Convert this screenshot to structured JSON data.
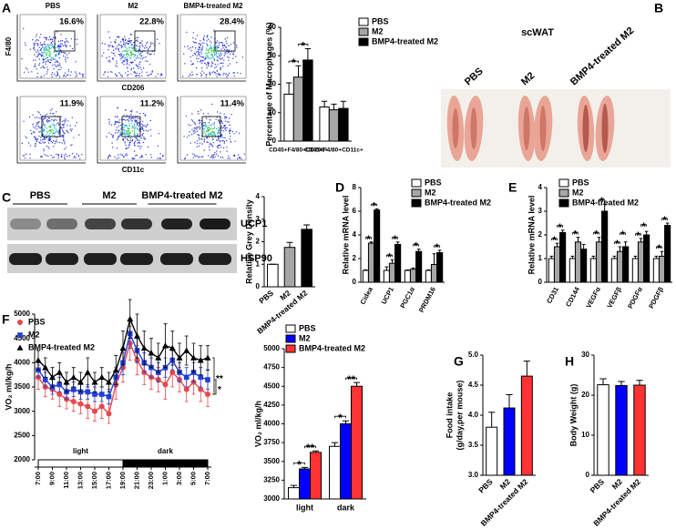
{
  "panels": [
    "A",
    "B",
    "C",
    "D",
    "E",
    "F",
    "G",
    "H"
  ],
  "flow_cytometry": {
    "columns": [
      "PBS",
      "M2",
      "BMP4-treated M2"
    ],
    "rows": [
      {
        "y_label": "F4/80",
        "x_label": "CD206",
        "gates": [
          "16.6%",
          "22.8%",
          "28.4%"
        ]
      },
      {
        "x_label": "CD11c",
        "gates": [
          "11.9%",
          "11.2%",
          "11.4%"
        ]
      }
    ]
  },
  "photo": {
    "title": "scWAT",
    "labels": [
      "PBS",
      "M2",
      "BMP4-treated M2"
    ]
  },
  "western_blot": {
    "columns": [
      "PBS",
      "M2",
      "BMP4-treated M2"
    ],
    "rows": [
      "UCP1",
      "HSP90"
    ]
  },
  "chart_data": [
    {
      "type": "bar",
      "ylabel": "Percentage of Macrophages (%)",
      "categories": [
        "CD45+F4/80+CD206+",
        "CD45+F4/80+CD11c+"
      ],
      "series": [
        {
          "name": "PBS",
          "color": "#ffffff",
          "values": [
            16.5,
            12
          ],
          "errors": [
            4,
            2
          ]
        },
        {
          "name": "M2",
          "color": "#a6a6a6",
          "values": [
            22.5,
            11
          ],
          "errors": [
            4,
            2
          ]
        },
        {
          "name": "BMP4-treated M2",
          "color": "#000000",
          "values": [
            28.5,
            11.5
          ],
          "errors": [
            4,
            2.5
          ]
        }
      ],
      "ylim": [
        0,
        40
      ],
      "yticks": [
        0,
        10,
        20,
        30,
        40
      ],
      "significance": [
        {
          "text": "*",
          "category": 0,
          "from": 0,
          "to": 1
        },
        {
          "text": "*",
          "category": 0,
          "from": 1,
          "to": 2
        }
      ]
    },
    {
      "type": "bar",
      "ylabel": "Relative Grey Density",
      "categories": [
        "PBS",
        "M2",
        "BMP4-treated M2"
      ],
      "values": [
        1,
        1.75,
        2.55
      ],
      "errors": [
        0,
        0.22,
        0.2
      ],
      "colors": [
        "#ffffff",
        "#a6a6a6",
        "#000000"
      ],
      "ylim": [
        0,
        4
      ],
      "yticks": [
        0,
        1,
        2,
        3,
        4
      ]
    },
    {
      "type": "bar",
      "ylabel": "Relative mRNA level",
      "categories": [
        "Cidea",
        "UCP1",
        "PGC1α",
        "PRDM16"
      ],
      "series": [
        {
          "name": "PBS",
          "color": "#ffffff",
          "values": [
            1,
            1,
            1,
            1
          ],
          "errors": [
            0.05,
            0.3,
            0.05,
            0.05
          ]
        },
        {
          "name": "M2",
          "color": "#a6a6a6",
          "values": [
            3.3,
            1.6,
            1.1,
            1.5
          ],
          "errors": [
            0.1,
            0.3,
            0.1,
            0.9
          ]
        },
        {
          "name": "BMP4-treated M2",
          "color": "#000000",
          "values": [
            6.1,
            3.2,
            2.6,
            2.5
          ],
          "errors": [
            0.1,
            0.2,
            0.2,
            0.2
          ]
        }
      ],
      "ylim": [
        0,
        8
      ],
      "yticks": [
        0,
        2,
        4,
        6,
        8
      ],
      "significance": [
        {
          "text": "*",
          "category": 0,
          "from": 0,
          "to": 1
        },
        {
          "text": "*",
          "category": 0,
          "from": 1,
          "to": 2
        },
        {
          "text": "*",
          "category": 1,
          "from": 0,
          "to": 1
        },
        {
          "text": "*",
          "category": 1,
          "from": 1,
          "to": 2
        },
        {
          "text": "*",
          "category": 2,
          "from": 1,
          "to": 2
        },
        {
          "text": "*",
          "category": 3,
          "from": 1,
          "to": 2
        }
      ]
    },
    {
      "type": "bar",
      "ylabel": "Relative mRNA level",
      "categories": [
        "CD31",
        "CD144",
        "VEGFα",
        "VEGFβ",
        "PDGFα",
        "PDGFβ"
      ],
      "series": [
        {
          "name": "PBS",
          "color": "#ffffff",
          "values": [
            1,
            1,
            1,
            1,
            1,
            1
          ],
          "errors": [
            0.1,
            0.1,
            0.1,
            0.1,
            0.1,
            0.1
          ]
        },
        {
          "name": "M2",
          "color": "#a6a6a6",
          "values": [
            1.5,
            1.7,
            1.7,
            1.3,
            1.7,
            1.1
          ],
          "errors": [
            0.15,
            0.2,
            0.2,
            0.2,
            0.15,
            0.2
          ]
        },
        {
          "name": "BMP4-treated M2",
          "color": "#000000",
          "values": [
            2.1,
            1.4,
            3.0,
            1.5,
            2.0,
            2.4
          ],
          "errors": [
            0.1,
            0.2,
            0.3,
            0.2,
            0.15,
            0.1
          ]
        }
      ],
      "ylim": [
        0,
        4
      ],
      "yticks": [
        0,
        1,
        2,
        3,
        4
      ],
      "significance": [
        {
          "text": "*",
          "category": 0,
          "from": 0,
          "to": 1
        },
        {
          "text": "*",
          "category": 0,
          "from": 1,
          "to": 2
        },
        {
          "text": "*",
          "category": 1,
          "from": 0,
          "to": 1
        },
        {
          "text": "*",
          "category": 2,
          "from": 0,
          "to": 1
        },
        {
          "text": "*",
          "category": 2,
          "from": 1,
          "to": 2
        },
        {
          "text": "*",
          "category": 3,
          "from": 0,
          "to": 1
        },
        {
          "text": "*",
          "category": 3,
          "from": 1,
          "to": 2
        },
        {
          "text": "*",
          "category": 4,
          "from": 0,
          "to": 1
        },
        {
          "text": "*",
          "category": 4,
          "from": 1,
          "to": 2
        },
        {
          "text": "*",
          "category": 5,
          "from": 0,
          "to": 1
        },
        {
          "text": "*",
          "category": 5,
          "from": 1,
          "to": 2
        }
      ]
    },
    {
      "type": "line",
      "ylabel": "VO₂ ml/kg/h",
      "categories": [
        "7:00",
        null,
        "9:00",
        null,
        "11:00",
        null,
        "13:00",
        null,
        "15:00",
        null,
        "17:00",
        null,
        "19:00",
        null,
        "21:00",
        null,
        "23:00",
        null,
        "1:00",
        null,
        "3:00",
        null,
        "5:00",
        null,
        "7:00"
      ],
      "series": [
        {
          "name": "PBS",
          "color": "#e8474c",
          "marker": "circle",
          "values": [
            3700,
            3500,
            3450,
            3350,
            3250,
            3200,
            3150,
            3100,
            3000,
            3100,
            2950,
            3550,
            3900,
            4400,
            4050,
            3800,
            3700,
            3650,
            3550,
            3800,
            3650,
            3450,
            3600,
            3450,
            3350
          ],
          "errors": [
            250,
            200,
            200,
            250,
            200,
            200,
            200,
            250,
            200,
            250,
            200,
            300,
            300,
            350,
            300,
            250,
            250,
            250,
            300,
            300,
            250,
            250,
            250,
            250,
            250
          ]
        },
        {
          "name": "M2",
          "color": "#1f3fd6",
          "marker": "square",
          "values": [
            3850,
            3650,
            3500,
            3550,
            3400,
            3450,
            3400,
            3400,
            3350,
            3350,
            3300,
            3700,
            4000,
            4600,
            4250,
            4000,
            3900,
            3800,
            3900,
            4050,
            3800,
            3700,
            3800,
            3700,
            3650
          ],
          "errors": [
            150,
            150,
            150,
            150,
            150,
            150,
            150,
            150,
            150,
            150,
            150,
            200,
            250,
            300,
            250,
            200,
            200,
            200,
            200,
            200,
            200,
            200,
            200,
            200,
            200
          ]
        },
        {
          "name": "BMP4-treated M2",
          "color": "#000000",
          "marker": "triangle",
          "values": [
            4050,
            3900,
            3700,
            3800,
            3600,
            3700,
            3600,
            3800,
            3600,
            3700,
            3600,
            3850,
            4300,
            4900,
            4550,
            4300,
            4200,
            4100,
            4350,
            4300,
            4100,
            4250,
            4100,
            4050,
            4100
          ],
          "errors": [
            200,
            200,
            200,
            200,
            200,
            200,
            200,
            300,
            200,
            200,
            200,
            300,
            350,
            400,
            450,
            350,
            300,
            300,
            450,
            350,
            300,
            300,
            300,
            300,
            250
          ]
        }
      ],
      "ylim": [
        2000,
        5000
      ],
      "yticks": [
        2000,
        2500,
        3000,
        3500,
        4000,
        4500,
        5000
      ],
      "periods": [
        {
          "label": "light",
          "from": 0,
          "to": 12,
          "color": "#ffffff"
        },
        {
          "label": "dark",
          "from": 12,
          "to": 24,
          "color": "#000000"
        }
      ],
      "end_significance": [
        {
          "text": "**",
          "from": 0,
          "to": 2
        },
        {
          "text": "*",
          "from": 0,
          "to": 1
        }
      ]
    },
    {
      "type": "bar",
      "ylabel": "VO₂ ml/kg/h",
      "categories": [
        "light",
        "dark"
      ],
      "series": [
        {
          "name": "PBS",
          "color": "#ffffff",
          "values": [
            3150,
            3700
          ],
          "errors": [
            30,
            50
          ]
        },
        {
          "name": "M2",
          "color": "#0000ff",
          "values": [
            3400,
            4000
          ],
          "errors": [
            20,
            40
          ]
        },
        {
          "name": "BMP4-treated M2",
          "color": "#ff3333",
          "values": [
            3620,
            4500
          ],
          "errors": [
            20,
            50
          ]
        }
      ],
      "ylim": [
        3000,
        5000
      ],
      "yticks": [
        3000,
        3250,
        3500,
        3750,
        4000,
        4250,
        4500,
        4750,
        5000
      ],
      "significance": [
        {
          "text": "*",
          "category": 0,
          "from": 0,
          "to": 1
        },
        {
          "text": "**",
          "category": 0,
          "from": 1,
          "to": 2
        },
        {
          "text": "*",
          "category": 1,
          "from": 0,
          "to": 1
        },
        {
          "text": "**",
          "category": 1,
          "from": 1,
          "to": 2
        }
      ]
    },
    {
      "type": "bar",
      "ylabel": [
        "Food intake",
        "(g/day,per mouse)"
      ],
      "categories": [
        "PBS",
        "M2",
        "BMP4-treated M2"
      ],
      "values": [
        3.8,
        4.12,
        4.65
      ],
      "errors": [
        0.25,
        0.22,
        0.25
      ],
      "colors": [
        "#ffffff",
        "#0000ff",
        "#ff3333"
      ],
      "ylim": [
        3,
        5
      ],
      "yticks": [
        {
          "value": 3,
          "label": "3.0"
        },
        3.5,
        {
          "value": 4,
          "label": "4.0"
        },
        4.5,
        {
          "value": 5,
          "label": "5.0"
        }
      ]
    },
    {
      "type": "bar",
      "ylabel": "Body Weight (g)",
      "categories": [
        "PBS",
        "M2",
        "BMP4-treated M2"
      ],
      "values": [
        22.6,
        22.4,
        22.5
      ],
      "errors": [
        1.5,
        1,
        1.2
      ],
      "colors": [
        "#ffffff",
        "#0000ff",
        "#ff3333"
      ],
      "ylim": [
        0,
        30
      ],
      "yticks": [
        0,
        10,
        20,
        30
      ]
    }
  ]
}
